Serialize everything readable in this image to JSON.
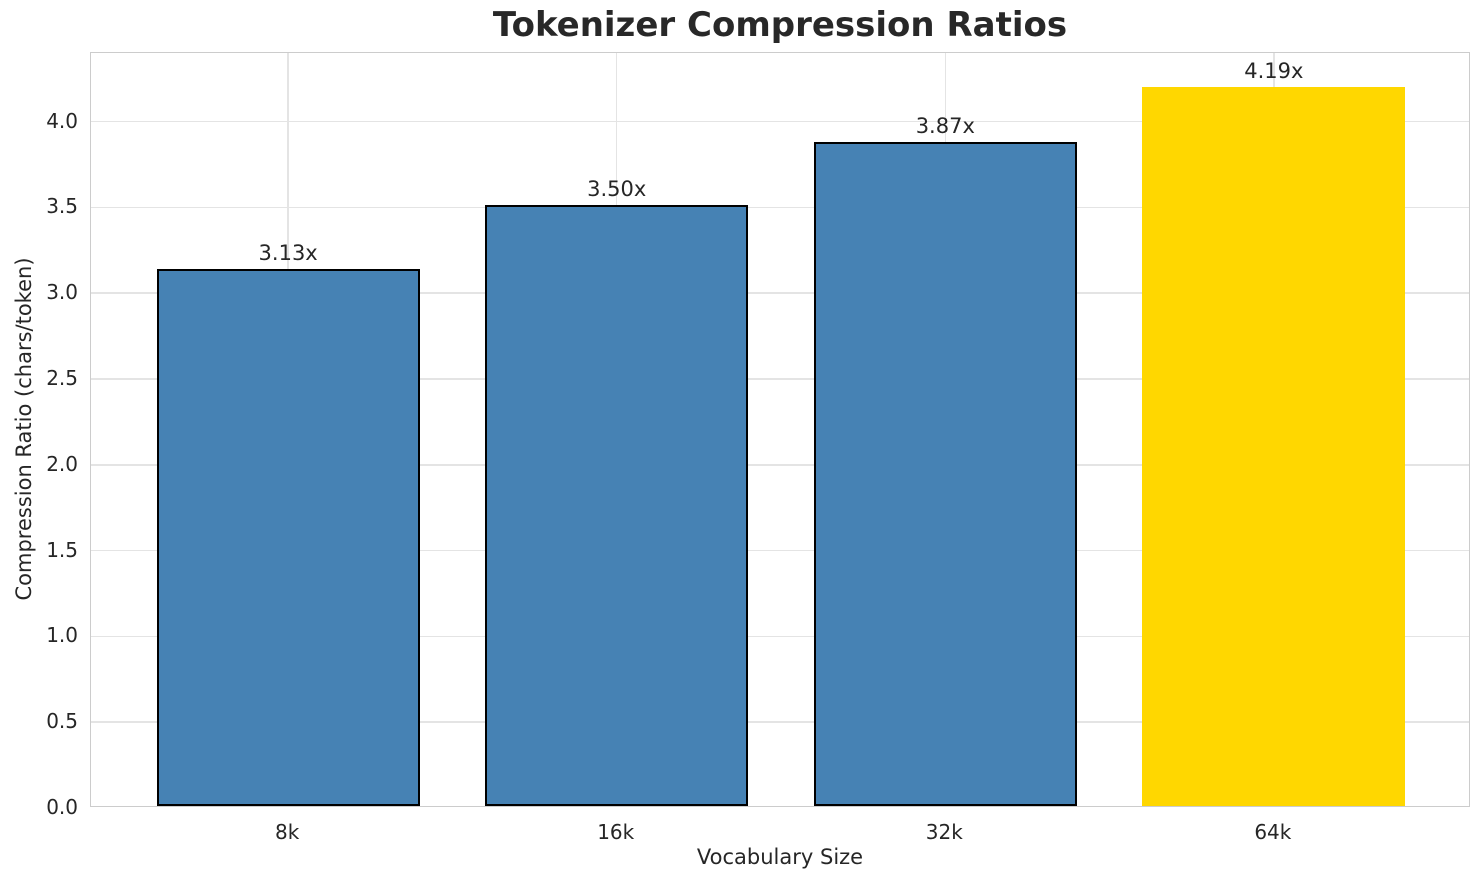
{
  "chart_data": {
    "type": "bar",
    "title": "Tokenizer Compression Ratios",
    "xlabel": "Vocabulary Size",
    "ylabel": "Compression Ratio (chars/token)",
    "categories": [
      "8k",
      "16k",
      "32k",
      "64k"
    ],
    "values": [
      3.13,
      3.5,
      3.87,
      4.19
    ],
    "bar_labels": [
      "3.13x",
      "3.50x",
      "3.87x",
      "4.19x"
    ],
    "bar_colors": [
      "#4682B4",
      "#4682B4",
      "#4682B4",
      "#FFD700"
    ],
    "bar_edge_colors": [
      "#000000",
      "#000000",
      "#000000",
      "none"
    ],
    "ylim": [
      0,
      4.4
    ],
    "yticks": [
      0,
      0.5,
      1,
      1.5,
      2,
      2.5,
      3,
      3.5,
      4
    ],
    "ytick_labels": [
      "0.0",
      "0.5",
      "1.0",
      "1.5",
      "2.0",
      "2.5",
      "3.0",
      "3.5",
      "4.0"
    ],
    "grid": true,
    "legend": null,
    "colors": {
      "grid": "#e4e4e4",
      "spine": "#cccccc",
      "text": "#262626",
      "highlight_bar": "#FFD700",
      "default_bar": "#4682B4"
    }
  }
}
